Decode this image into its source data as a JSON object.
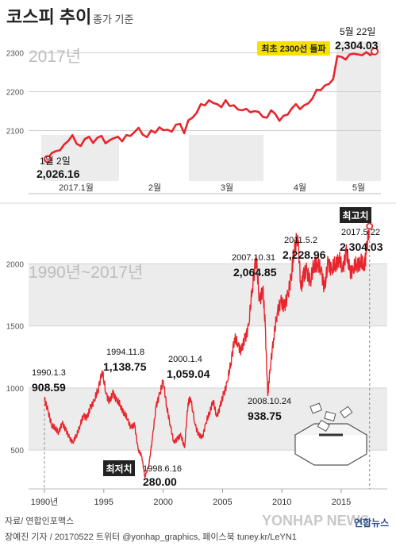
{
  "header": {
    "title": "코스피 추이",
    "subtitle": "종가 기준"
  },
  "colors": {
    "line": "#e8252c",
    "band": "#ececec",
    "badge_bg": "#f6e100",
    "label_bg": "#222222"
  },
  "chart_data": [
    {
      "type": "line",
      "title": "2017년",
      "ylim": [
        1970,
        2330
      ],
      "y_ticks": [
        2100,
        2200,
        2300
      ],
      "x_ticks": [
        "2017.1월",
        "2월",
        "3월",
        "4월",
        "5월"
      ],
      "series": [
        {
          "values": [
            2026.16,
            2042,
            2047,
            2049,
            2064,
            2073,
            2088,
            2066,
            2060,
            2078,
            2084,
            2068,
            2081,
            2086,
            2067,
            2075,
            2080,
            2084,
            2072,
            2088,
            2086,
            2096,
            2107,
            2089,
            2083,
            2100,
            2094,
            2108,
            2101,
            2102,
            2097,
            2115,
            2117,
            2093,
            2126,
            2133,
            2145,
            2168,
            2165,
            2178,
            2171,
            2168,
            2160,
            2178,
            2163,
            2165,
            2154,
            2152,
            2156,
            2147,
            2150,
            2148,
            2135,
            2133,
            2152,
            2143,
            2125,
            2138,
            2141,
            2157,
            2168,
            2155,
            2165,
            2170,
            2183,
            2205,
            2204,
            2216,
            2220,
            2232,
            2292,
            2290,
            2283,
            2296,
            2298,
            2296,
            2294,
            2302,
            2294,
            2304.03
          ]
        }
      ],
      "annotations": [
        {
          "date": "1월 2일",
          "value": "2,026.16"
        },
        {
          "date": "5월 22일",
          "value": "2,304.03"
        },
        {
          "badge": "최초 2300선 돌파"
        }
      ]
    },
    {
      "type": "line",
      "title": "1990년~2017년",
      "ylim": [
        200,
        2400
      ],
      "y_ticks": [
        500,
        1000,
        1500,
        2000
      ],
      "x_ticks": [
        "1990년",
        "1995",
        "2000",
        "2005",
        "2010",
        "2015"
      ],
      "series": [
        {
          "x": [
            1990.0,
            1990.3,
            1990.6,
            1990.9,
            1991.2,
            1991.5,
            1991.8,
            1992.1,
            1992.4,
            1992.7,
            1993.0,
            1993.3,
            1993.6,
            1993.9,
            1994.2,
            1994.5,
            1994.86,
            1995.2,
            1995.5,
            1995.8,
            1996.1,
            1996.4,
            1996.7,
            1997.0,
            1997.3,
            1997.6,
            1997.9,
            1998.2,
            1998.46,
            1998.8,
            1999.1,
            1999.4,
            1999.7,
            2000.01,
            2000.3,
            2000.6,
            2000.9,
            2001.2,
            2001.5,
            2001.8,
            2002.1,
            2002.3,
            2002.7,
            2003.0,
            2003.3,
            2003.6,
            2003.9,
            2004.2,
            2004.5,
            2004.8,
            2005.1,
            2005.4,
            2005.7,
            2006.0,
            2006.3,
            2006.6,
            2006.9,
            2007.2,
            2007.5,
            2007.83,
            2008.1,
            2008.4,
            2008.6,
            2008.81,
            2009.0,
            2009.3,
            2009.6,
            2009.9,
            2010.2,
            2010.5,
            2010.8,
            2011.0,
            2011.34,
            2011.6,
            2011.8,
            2012.1,
            2012.4,
            2012.7,
            2013.0,
            2013.3,
            2013.6,
            2013.9,
            2014.2,
            2014.5,
            2014.8,
            2015.1,
            2015.4,
            2015.7,
            2016.0,
            2016.3,
            2016.6,
            2016.9,
            2017.1,
            2017.39
          ],
          "values": [
            908.59,
            820,
            700,
            680,
            640,
            720,
            660,
            600,
            560,
            620,
            700,
            780,
            760,
            850,
            900,
            980,
            1138.75,
            950,
            890,
            960,
            900,
            860,
            800,
            750,
            680,
            700,
            500,
            450,
            280.0,
            380,
            600,
            850,
            950,
            1059.04,
            850,
            700,
            560,
            590,
            620,
            520,
            880,
            920,
            700,
            620,
            600,
            720,
            800,
            900,
            770,
            850,
            950,
            1050,
            1200,
            1400,
            1350,
            1300,
            1400,
            1500,
            1800,
            2064.85,
            1700,
            1800,
            1500,
            938.75,
            1150,
            1400,
            1600,
            1700,
            1650,
            1750,
            1900,
            2100,
            2228.96,
            1800,
            1900,
            1950,
            1850,
            2000,
            2000,
            1950,
            1800,
            2020,
            1950,
            2000,
            2050,
            1950,
            2100,
            1950,
            1950,
            2000,
            2020,
            1980,
            2080,
            2304.03
          ]
        }
      ],
      "annotations": [
        {
          "date": "1990.1.3",
          "value": "908.59"
        },
        {
          "date": "1994.11.8",
          "value": "1,138.75"
        },
        {
          "date": "2000.1.4",
          "value": "1,059.04"
        },
        {
          "date": "1998.6.16",
          "value": "280.00",
          "tag": "최저치"
        },
        {
          "date": "2007.10.31",
          "value": "2,064.85"
        },
        {
          "date": "2008.10.24",
          "value": "938.75"
        },
        {
          "date": "2011.5.2",
          "value": "2,228.96"
        },
        {
          "date": "2017.5.22",
          "value": "2,304.03",
          "tag": "최고치"
        }
      ]
    }
  ],
  "footer": {
    "source": "자료/ 연합인포맥스",
    "credit": "장예진 기자 / 20170522 트위터 @yonhap_graphics, 페이스북 tuney.kr/LeYN1",
    "logo": "YONHAP NEWS",
    "logo_kr": "연합뉴스"
  }
}
